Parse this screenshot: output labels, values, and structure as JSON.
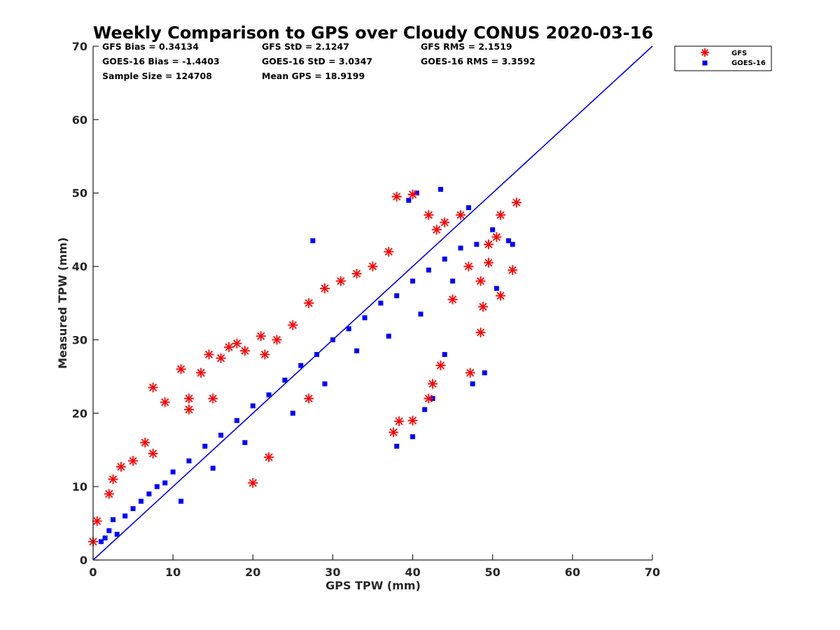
{
  "chart_data": {
    "type": "scatter",
    "title": "Weekly Comparison to GPS over Cloudy CONUS 2020-03-16",
    "xlabel": "GPS TPW (mm)",
    "ylabel": "Measured TPW (mm)",
    "xlim": [
      0,
      70
    ],
    "ylim": [
      0,
      70
    ],
    "xticks": [
      "0",
      "10",
      "20",
      "30",
      "40",
      "50",
      "60",
      "70"
    ],
    "yticks": [
      "0",
      "10",
      "20",
      "30",
      "40",
      "50",
      "60",
      "70"
    ],
    "grid": false,
    "legend_position": "outside-top-right",
    "stats": [
      [
        "GFS Bias = 0.34134",
        "GFS StD = 2.1247",
        "GFS RMS = 2.1519"
      ],
      [
        "GOES-16 Bias = -1.4403",
        "GOES-16 StD = 3.0347",
        "GOES-16 RMS = 3.3592"
      ],
      [
        "Sample Size = 124708",
        "Mean GPS = 18.9199"
      ]
    ],
    "reference_line": {
      "x": [
        0,
        70
      ],
      "y": [
        0,
        70
      ],
      "color": "#0000e6"
    },
    "series": [
      {
        "name": "GOES-16",
        "marker": "square",
        "color": "#0000ff",
        "x": [
          1.0,
          1.5,
          2.0,
          2.5,
          3.0,
          4.0,
          5.0,
          6.0,
          7.0,
          8.0,
          9.0,
          10.0,
          12.0,
          14.0,
          16.0,
          18.0,
          20.0,
          22.0,
          24.0,
          26.0,
          28.0,
          30.0,
          32.0,
          34.0,
          36.0,
          38.0,
          40.0,
          42.0,
          44.0,
          46.0,
          48.0,
          50.0,
          52.0,
          11.0,
          15.0,
          19.0,
          25.0,
          29.0,
          33.0,
          37.0,
          41.0,
          45.0,
          27.5,
          39.5,
          43.5,
          47.0,
          41.5,
          38.0,
          40.0,
          44.0,
          47.5,
          49.0,
          50.5,
          52.5,
          40.5,
          42.5
        ],
        "y": [
          2.5,
          3.0,
          4.0,
          5.5,
          3.5,
          6.0,
          7.0,
          8.0,
          9.0,
          10.0,
          10.5,
          12.0,
          13.5,
          15.5,
          17.0,
          19.0,
          21.0,
          22.5,
          24.5,
          26.5,
          28.0,
          30.0,
          31.5,
          33.0,
          35.0,
          36.0,
          38.0,
          39.5,
          41.0,
          42.5,
          43.0,
          45.0,
          43.5,
          8.0,
          12.5,
          16.0,
          20.0,
          24.0,
          28.5,
          30.5,
          33.5,
          38.0,
          43.5,
          49.0,
          50.5,
          48.0,
          20.5,
          15.5,
          16.8,
          28.0,
          24.0,
          25.5,
          37.0,
          43.0,
          50.0,
          22.0
        ]
      },
      {
        "name": "GFS",
        "marker": "asterisk",
        "color": "#ff0000",
        "x": [
          0.0,
          0.5,
          2.0,
          2.5,
          3.5,
          5.0,
          6.5,
          7.5,
          9.0,
          11.0,
          12.0,
          13.5,
          14.5,
          16.0,
          17.0,
          18.0,
          19.0,
          21.0,
          21.5,
          23.0,
          25.0,
          27.0,
          29.0,
          31.0,
          33.0,
          35.0,
          37.0,
          38.0,
          40.0,
          42.0,
          43.0,
          44.0,
          46.0,
          47.0,
          48.5,
          49.5,
          50.5,
          51.0,
          52.5,
          53.0,
          38.3,
          37.6,
          40.0,
          42.0,
          48.5,
          48.8,
          47.2,
          43.5,
          22.0,
          27.0,
          20.0,
          7.5,
          12.0,
          15.0,
          42.5,
          45.0,
          49.5,
          51.0
        ],
        "y": [
          2.5,
          5.3,
          9.0,
          11.0,
          12.7,
          13.5,
          16.0,
          23.5,
          21.5,
          26.0,
          22.0,
          25.5,
          28.0,
          27.5,
          29.0,
          29.5,
          28.5,
          30.5,
          28.0,
          30.0,
          32.0,
          35.0,
          37.0,
          38.0,
          39.0,
          40.0,
          42.0,
          49.5,
          49.8,
          47.0,
          45.0,
          46.0,
          47.0,
          40.0,
          38.0,
          43.0,
          44.0,
          47.0,
          39.5,
          48.7,
          18.9,
          17.4,
          19.0,
          22.0,
          31.0,
          34.5,
          25.5,
          26.5,
          14.0,
          22.0,
          10.5,
          14.5,
          20.5,
          22.0,
          24.0,
          35.5,
          40.5,
          36.0
        ]
      }
    ]
  }
}
